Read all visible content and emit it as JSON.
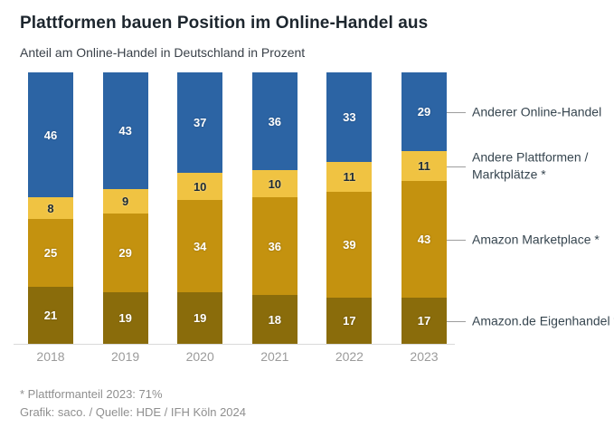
{
  "header": {
    "title": "Plattformen bauen Position im Online-Handel aus",
    "subtitle": "Anteil am Online-Handel in Deutschland in Prozent"
  },
  "footer": {
    "note": "* Plattformanteil 2023: 71%",
    "credit": "Grafik: saco. / Quelle: HDE / IFH Köln 2024"
  },
  "chart_data": {
    "type": "bar",
    "variant": "stacked-100-percent",
    "title": "Plattformen bauen Position im Online-Handel aus",
    "subtitle": "Anteil am Online-Handel in Deutschland in Prozent",
    "unit": "Prozent",
    "ylim": [
      0,
      100
    ],
    "grid": false,
    "legend_position": "right",
    "categories": [
      "2018",
      "2019",
      "2020",
      "2021",
      "2022",
      "2023"
    ],
    "series": [
      {
        "name": "Amazon.de Eigenhandel *",
        "color": "#8a6c0b",
        "label_color": "#ffffff",
        "values": [
          21,
          19,
          19,
          18,
          17,
          17
        ]
      },
      {
        "name": "Amazon Marketplace *",
        "color": "#c4920f",
        "label_color": "#ffffff",
        "values": [
          25,
          29,
          34,
          36,
          39,
          43
        ]
      },
      {
        "name": "Andere Plattformen / Marktplätze *",
        "color": "#f0c342",
        "label_color": "#1d2b36",
        "values": [
          8,
          9,
          10,
          10,
          11,
          11
        ]
      },
      {
        "name": "Anderer Online-Handel",
        "color": "#2c64a4",
        "label_color": "#ffffff",
        "values": [
          46,
          43,
          37,
          36,
          33,
          29
        ]
      }
    ],
    "series_order": "bottom-to-top",
    "legend": [
      {
        "series": "Anderer Online-Handel",
        "lines": [
          "Anderer Online-Handel"
        ]
      },
      {
        "series": "Andere Plattformen / Marktplätze *",
        "lines": [
          "Andere Plattformen /",
          "Marktplätze *"
        ]
      },
      {
        "series": "Amazon Marketplace *",
        "lines": [
          "Amazon Marketplace *"
        ]
      },
      {
        "series": "Amazon.de Eigenhandel *",
        "lines": [
          "Amazon.de Eigenhandel *"
        ]
      }
    ],
    "axis_colors": {
      "baseline": "#d9d9d9",
      "tick_label": "#9b9b9b"
    }
  }
}
